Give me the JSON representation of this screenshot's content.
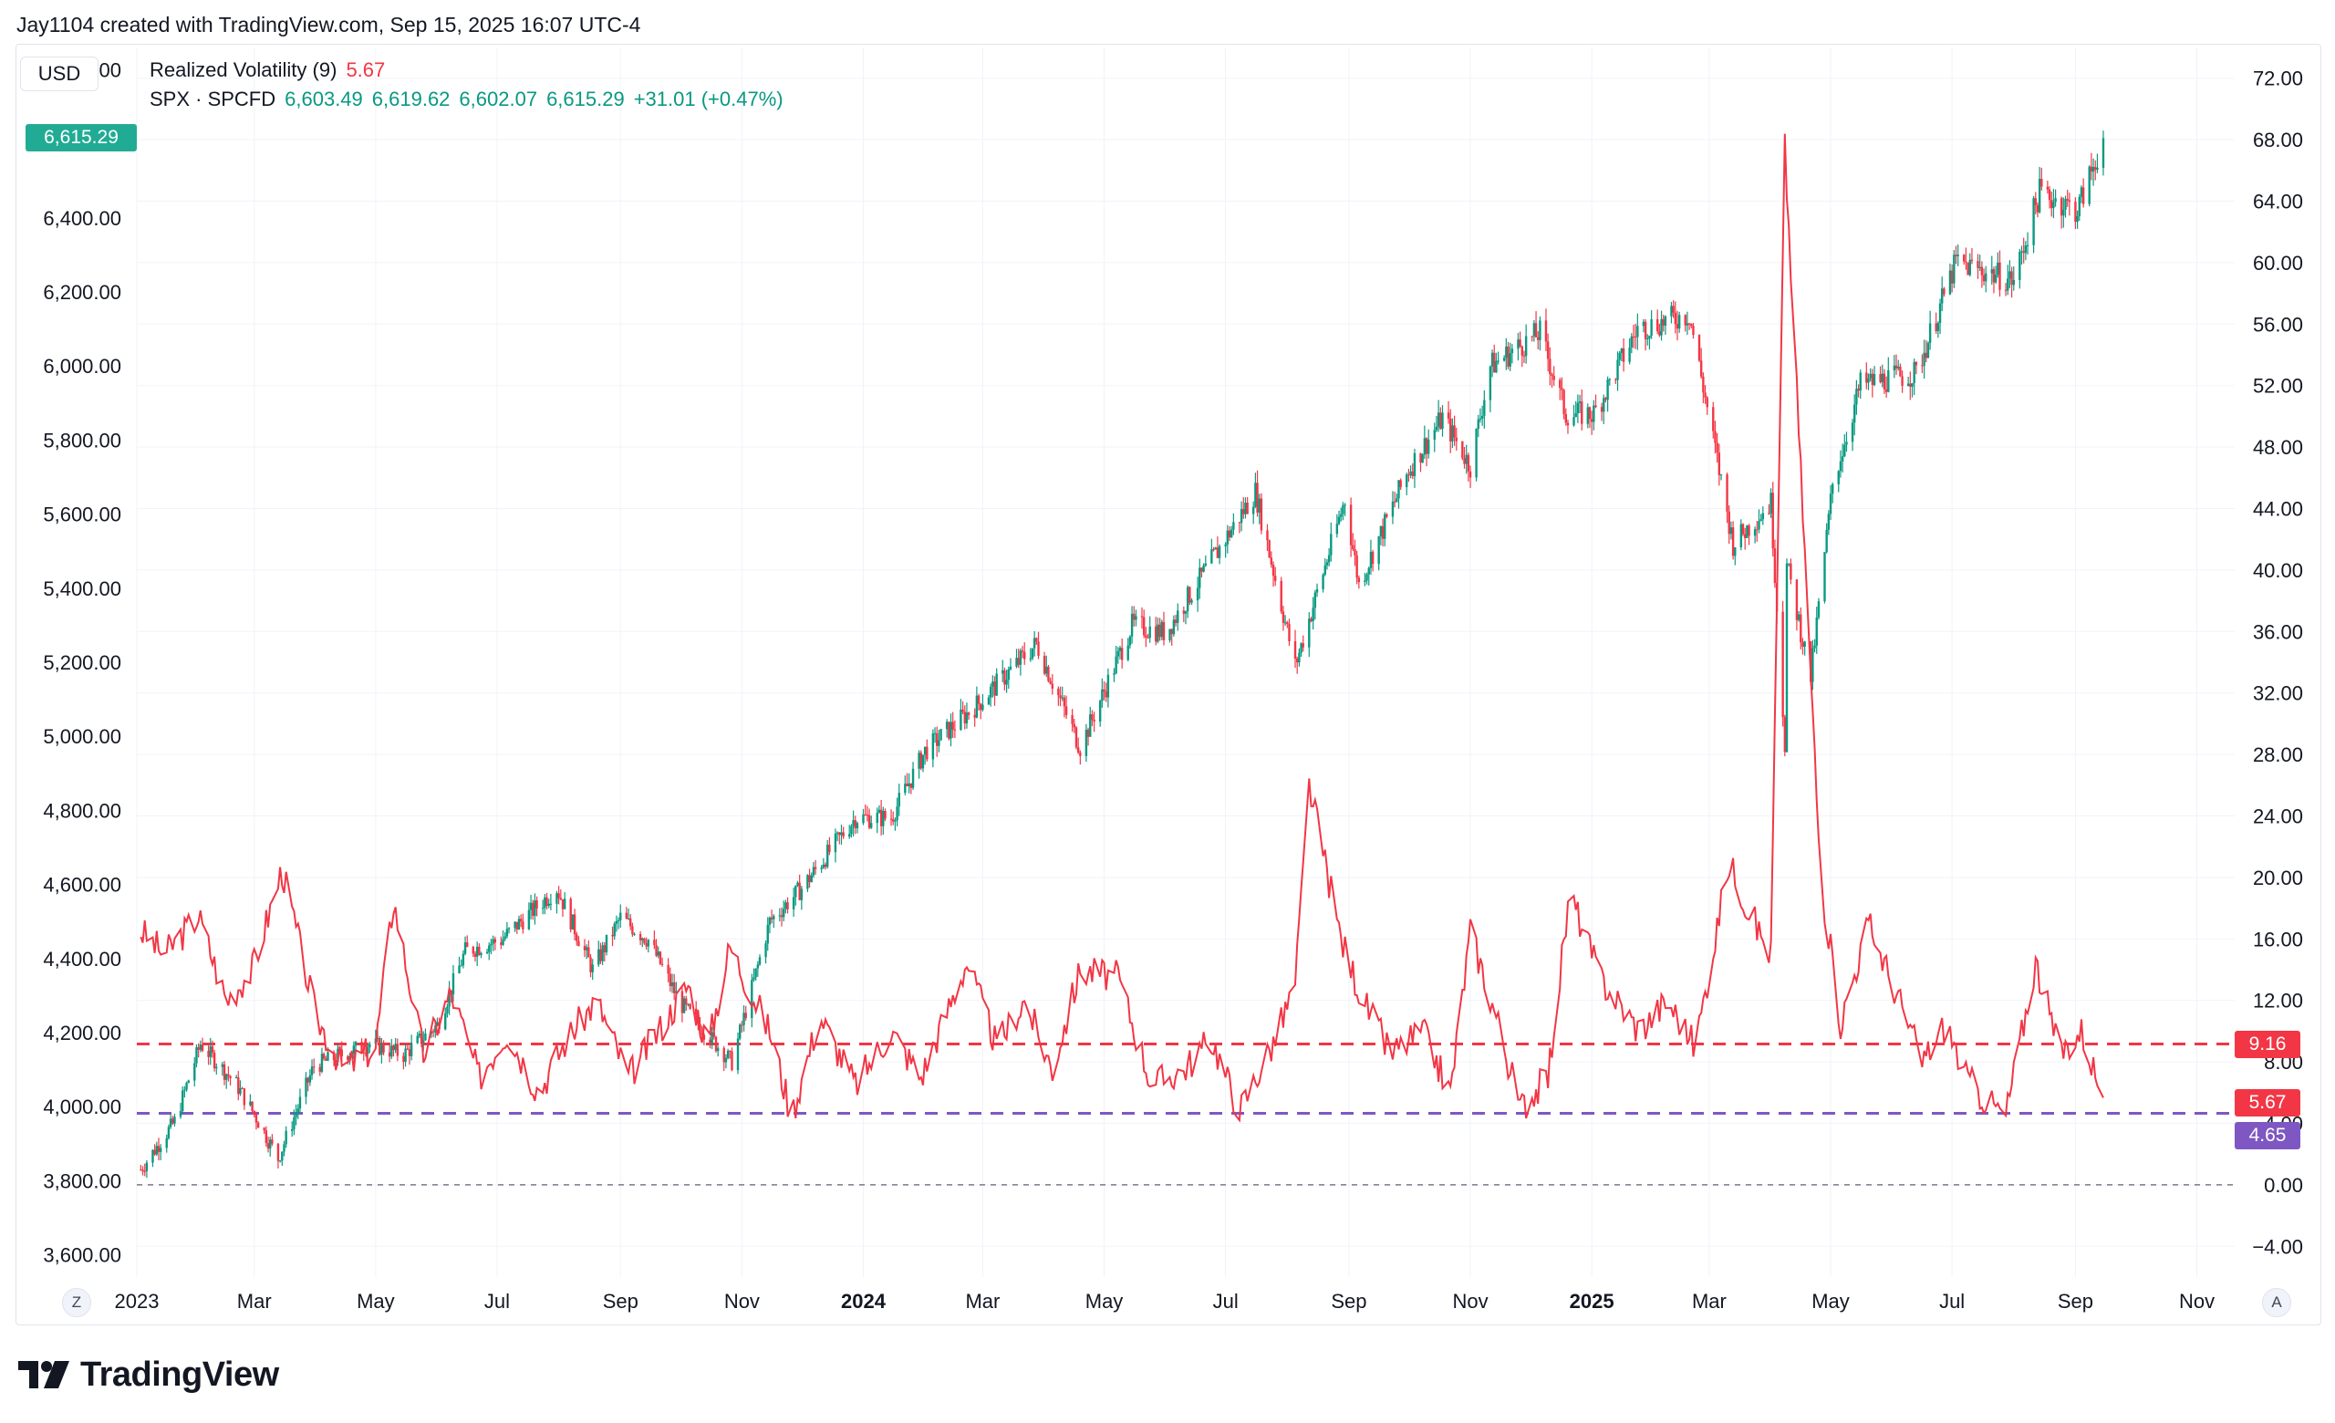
{
  "header": {
    "credit": "Jay1104 created with TradingView.com, Sep 15, 2025 16:07 UTC-4"
  },
  "currency": "USD",
  "legend": {
    "volatility": {
      "name": "Realized Volatility (9)",
      "value": "5.67"
    },
    "spx": {
      "name": "SPX · SPCFD",
      "open": "6,603.49",
      "high": "6,619.62",
      "low": "6,602.07",
      "close": "6,615.29",
      "change": "+31.01 (+0.47%)"
    }
  },
  "price_tags": {
    "spx_last": "6,615.29",
    "vol_upper": "9.16",
    "vol_last": "5.67",
    "vol_lower": "4.65"
  },
  "brand": {
    "name": "TradingView",
    "logo_icon": "tradingview-logo-icon"
  },
  "buttons": {
    "left_axis": "Z",
    "right_axis": "A"
  },
  "colors": {
    "up": "#089981",
    "down": "#f23645",
    "volatility": "#f23645",
    "upper_band": "#f23645",
    "lower_band": "#7e57c2",
    "tag_spx": "#22ab94",
    "tag_vol": "#f23645",
    "tag_lower": "#7e57c2"
  },
  "chart_data": {
    "type": "line",
    "x_range": [
      "2023-01-01",
      "2025-11-20"
    ],
    "x_axis_ticks": [
      {
        "date": "2023-01-01",
        "label": "2023"
      },
      {
        "date": "2023-03-01",
        "label": "Mar"
      },
      {
        "date": "2023-05-01",
        "label": "May"
      },
      {
        "date": "2023-07-01",
        "label": "Jul"
      },
      {
        "date": "2023-09-01",
        "label": "Sep"
      },
      {
        "date": "2023-11-01",
        "label": "Nov"
      },
      {
        "date": "2024-01-01",
        "label": "2024",
        "bold": true
      },
      {
        "date": "2024-03-01",
        "label": "Mar"
      },
      {
        "date": "2024-05-01",
        "label": "May"
      },
      {
        "date": "2024-07-01",
        "label": "Jul"
      },
      {
        "date": "2024-09-01",
        "label": "Sep"
      },
      {
        "date": "2024-11-01",
        "label": "Nov"
      },
      {
        "date": "2025-01-01",
        "label": "2025",
        "bold": true
      },
      {
        "date": "2025-03-01",
        "label": "Mar"
      },
      {
        "date": "2025-05-01",
        "label": "May"
      },
      {
        "date": "2025-07-01",
        "label": "Jul"
      },
      {
        "date": "2025-09-01",
        "label": "Sep"
      },
      {
        "date": "2025-11-01",
        "label": "Nov"
      }
    ],
    "left_axis": {
      "label": "USD",
      "range": [
        3540,
        6860
      ],
      "ticks": [
        6800,
        6400,
        6200,
        6000,
        5800,
        5600,
        5400,
        5200,
        5000,
        4800,
        4600,
        4400,
        4200,
        4000,
        3800,
        3600
      ],
      "tick_labels": [
        "6,800.00",
        "6,400.00",
        "6,200.00",
        "6,000.00",
        "5,800.00",
        "5,600.00",
        "5,400.00",
        "5,200.00",
        "5,000.00",
        "4,800.00",
        "4,600.00",
        "4,400.00",
        "4,200.00",
        "4,000.00",
        "3,800.00",
        "3,600.00"
      ]
    },
    "right_axis": {
      "range": [
        -6,
        74
      ],
      "ticks": [
        72,
        68,
        64,
        60,
        56,
        52,
        48,
        44,
        40,
        36,
        32,
        28,
        24,
        20,
        16,
        12,
        8,
        4,
        0,
        -4
      ],
      "tick_labels": [
        "72.00",
        "68.00",
        "64.00",
        "60.00",
        "56.00",
        "52.00",
        "48.00",
        "44.00",
        "40.00",
        "36.00",
        "32.00",
        "28.00",
        "24.00",
        "20.00",
        "16.00",
        "12.00",
        "8.00",
        "4.00",
        "0.00",
        "−4.00"
      ]
    },
    "reference_lines": [
      {
        "name": "upper",
        "value": 9.16,
        "style": "dashed"
      },
      {
        "name": "lower",
        "value": 4.65,
        "style": "dashed"
      },
      {
        "name": "zero",
        "value": 0,
        "style": "dashed"
      }
    ],
    "series": [
      {
        "type": "candlestick",
        "axis": "left",
        "points": [
          [
            "2023-01-03",
            3830
          ],
          [
            "2023-01-20",
            3960
          ],
          [
            "2023-02-02",
            4170
          ],
          [
            "2023-02-20",
            4060
          ],
          [
            "2023-03-01",
            3980
          ],
          [
            "2023-03-13",
            3860
          ],
          [
            "2023-03-31",
            4110
          ],
          [
            "2023-04-28",
            4170
          ],
          [
            "2023-05-15",
            4140
          ],
          [
            "2023-06-01",
            4220
          ],
          [
            "2023-06-15",
            4420
          ],
          [
            "2023-07-03",
            4450
          ],
          [
            "2023-07-31",
            4590
          ],
          [
            "2023-08-18",
            4370
          ],
          [
            "2023-09-01",
            4510
          ],
          [
            "2023-09-15",
            4450
          ],
          [
            "2023-10-01",
            4280
          ],
          [
            "2023-10-27",
            4120
          ],
          [
            "2023-11-15",
            4500
          ],
          [
            "2023-12-01",
            4590
          ],
          [
            "2023-12-28",
            4780
          ],
          [
            "2024-01-15",
            4780
          ],
          [
            "2024-02-01",
            4960
          ],
          [
            "2024-02-28",
            5090
          ],
          [
            "2024-03-28",
            5250
          ],
          [
            "2024-04-19",
            4970
          ],
          [
            "2024-05-15",
            5300
          ],
          [
            "2024-06-01",
            5280
          ],
          [
            "2024-07-16",
            5660
          ],
          [
            "2024-08-05",
            5190
          ],
          [
            "2024-08-30",
            5640
          ],
          [
            "2024-09-06",
            5410
          ],
          [
            "2024-10-01",
            5720
          ],
          [
            "2024-10-18",
            5860
          ],
          [
            "2024-11-01",
            5730
          ],
          [
            "2024-11-11",
            6000
          ],
          [
            "2024-12-06",
            6090
          ],
          [
            "2024-12-19",
            5870
          ],
          [
            "2025-01-02",
            5870
          ],
          [
            "2025-01-24",
            6100
          ],
          [
            "2025-02-19",
            6140
          ],
          [
            "2025-03-13",
            5520
          ],
          [
            "2025-04-01",
            5630
          ],
          [
            "2025-04-08",
            4980
          ],
          [
            "2025-04-09",
            5460
          ],
          [
            "2025-04-21",
            5160
          ],
          [
            "2025-05-02",
            5680
          ],
          [
            "2025-05-16",
            5950
          ],
          [
            "2025-06-13",
            5980
          ],
          [
            "2025-07-03",
            6280
          ],
          [
            "2025-08-01",
            6230
          ],
          [
            "2025-08-14",
            6470
          ],
          [
            "2025-09-02",
            6420
          ],
          [
            "2025-09-15",
            6615
          ]
        ]
      },
      {
        "type": "line",
        "axis": "right",
        "points": [
          [
            "2023-01-03",
            16.5
          ],
          [
            "2023-01-15",
            15.0
          ],
          [
            "2023-02-01",
            17.5
          ],
          [
            "2023-02-15",
            12.0
          ],
          [
            "2023-02-28",
            14.0
          ],
          [
            "2023-03-15",
            20.5
          ],
          [
            "2023-04-01",
            11.0
          ],
          [
            "2023-04-15",
            7.5
          ],
          [
            "2023-05-01",
            9.0
          ],
          [
            "2023-05-10",
            18.5
          ],
          [
            "2023-05-25",
            8.5
          ],
          [
            "2023-06-08",
            12.5
          ],
          [
            "2023-06-22",
            7.0
          ],
          [
            "2023-07-06",
            10.0
          ],
          [
            "2023-07-22",
            6.0
          ],
          [
            "2023-08-05",
            9.5
          ],
          [
            "2023-08-20",
            12.0
          ],
          [
            "2023-09-05",
            7.0
          ],
          [
            "2023-09-20",
            10.0
          ],
          [
            "2023-10-05",
            13.0
          ],
          [
            "2023-10-15",
            9.0
          ],
          [
            "2023-10-26",
            15.5
          ],
          [
            "2023-11-15",
            10.0
          ],
          [
            "2023-11-26",
            4.5
          ],
          [
            "2023-12-10",
            11.0
          ],
          [
            "2023-12-28",
            6.5
          ],
          [
            "2024-01-15",
            10.0
          ],
          [
            "2024-01-30",
            7.0
          ],
          [
            "2024-02-22",
            14.5
          ],
          [
            "2024-03-08",
            9.0
          ],
          [
            "2024-03-22",
            12.0
          ],
          [
            "2024-04-05",
            7.5
          ],
          [
            "2024-04-19",
            14.0
          ],
          [
            "2024-05-08",
            13.5
          ],
          [
            "2024-05-25",
            6.5
          ],
          [
            "2024-06-10",
            7.5
          ],
          [
            "2024-06-24",
            9.5
          ],
          [
            "2024-07-08",
            4.8
          ],
          [
            "2024-07-26",
            9.5
          ],
          [
            "2024-08-05",
            13.0
          ],
          [
            "2024-08-12",
            26.0
          ],
          [
            "2024-08-28",
            16.0
          ],
          [
            "2024-09-08",
            12.0
          ],
          [
            "2024-09-22",
            8.5
          ],
          [
            "2024-10-08",
            10.0
          ],
          [
            "2024-10-22",
            6.0
          ],
          [
            "2024-11-01",
            16.5
          ],
          [
            "2024-11-15",
            10.5
          ],
          [
            "2024-11-26",
            5.0
          ],
          [
            "2024-12-10",
            7.0
          ],
          [
            "2024-12-21",
            19.0
          ],
          [
            "2025-01-05",
            13.5
          ],
          [
            "2025-01-25",
            10.0
          ],
          [
            "2025-02-08",
            12.0
          ],
          [
            "2025-02-22",
            9.0
          ],
          [
            "2025-03-11",
            21.0
          ],
          [
            "2025-03-22",
            17.5
          ],
          [
            "2025-04-01",
            15.0
          ],
          [
            "2025-04-08",
            67.5
          ],
          [
            "2025-04-15",
            49.0
          ],
          [
            "2025-04-26",
            20.0
          ],
          [
            "2025-05-06",
            10.5
          ],
          [
            "2025-05-20",
            17.0
          ],
          [
            "2025-06-03",
            12.5
          ],
          [
            "2025-06-16",
            8.0
          ],
          [
            "2025-06-28",
            10.5
          ],
          [
            "2025-07-08",
            7.0
          ],
          [
            "2025-07-18",
            5.5
          ],
          [
            "2025-07-28",
            4.5
          ],
          [
            "2025-08-12",
            14.5
          ],
          [
            "2025-08-24",
            8.5
          ],
          [
            "2025-09-04",
            10.0
          ],
          [
            "2025-09-15",
            5.67
          ]
        ]
      }
    ]
  }
}
